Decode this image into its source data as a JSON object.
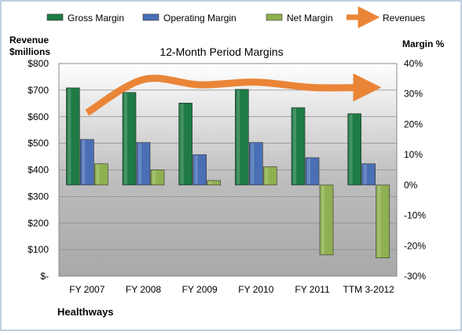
{
  "chart_data": {
    "type": "bar",
    "title": "12-Month Period Margins",
    "categories": [
      "FY 2007",
      "FY 2008",
      "FY 2009",
      "FY 2010",
      "FY 2011",
      "TTM 3-2012"
    ],
    "series": [
      {
        "name": "Gross Margin",
        "type": "bar",
        "axis": "right",
        "unit": "%",
        "values": [
          32.0,
          30.5,
          27.0,
          31.5,
          25.5,
          23.5
        ],
        "color": "#1e7b45"
      },
      {
        "name": "Operating Margin",
        "type": "bar",
        "axis": "right",
        "unit": "%",
        "values": [
          15.0,
          14.0,
          10.0,
          14.0,
          9.0,
          7.0
        ],
        "color": "#4a6fb5"
      },
      {
        "name": "Net Margin",
        "type": "bar",
        "axis": "right",
        "unit": "%",
        "values": [
          7.0,
          5.0,
          1.5,
          6.0,
          -23.0,
          -24.0
        ],
        "color": "#8fb050"
      },
      {
        "name": "Revenues",
        "type": "line",
        "axis": "left",
        "unit": "$millions",
        "values": [
          615,
          740,
          720,
          730,
          710,
          710
        ],
        "color": "#ea8537"
      }
    ],
    "left_axis": {
      "label": "Revenue $millions",
      "min": 0,
      "max": 800,
      "step": 100,
      "ticks": [
        "$-",
        "$100",
        "$200",
        "$300",
        "$400",
        "$500",
        "$600",
        "$700",
        "$800"
      ]
    },
    "right_axis": {
      "label": "Margin %",
      "min": -30,
      "max": 40,
      "step": 10,
      "ticks": [
        "-30%",
        "-20%",
        "-10%",
        "0%",
        "10%",
        "20%",
        "30%",
        "40%"
      ]
    },
    "legend_position": "top",
    "grid": true,
    "footer": "Healthways"
  }
}
